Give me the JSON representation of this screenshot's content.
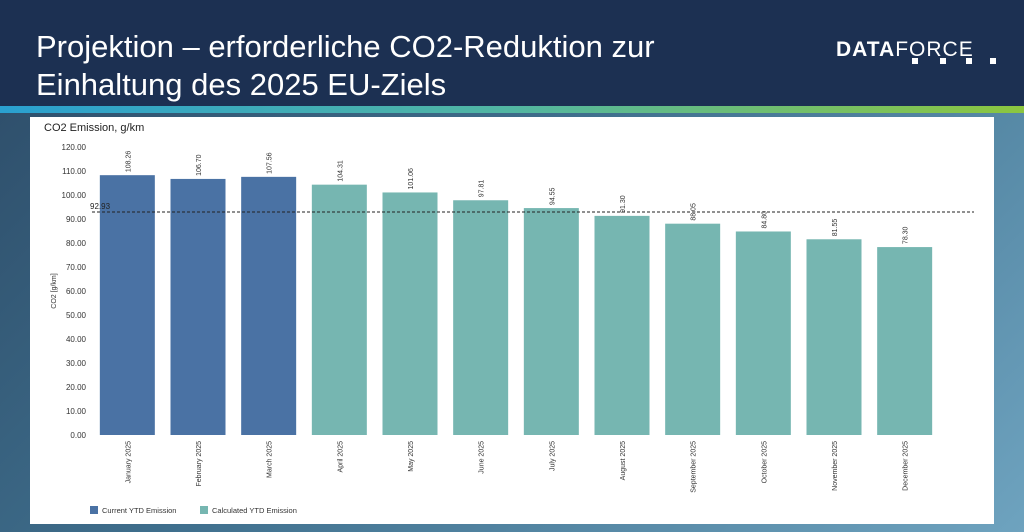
{
  "header": {
    "title": "Projektion – erforderliche CO2-Reduktion zur\nEinhaltung des 2025 EU-Ziels",
    "logo_bold": "DATA",
    "logo_light": "FORCE"
  },
  "colors": {
    "header_bg": "#1c3052",
    "current": "#4a72a4",
    "calculated": "#76b6b1",
    "target_line": "#222222"
  },
  "chart_data": {
    "type": "bar",
    "title": "CO2 Emission, g/km",
    "ylabel": "CO2 [g/km]",
    "xlabel": "",
    "ylim": [
      0,
      120
    ],
    "yticks": [
      "0.00",
      "10.00",
      "20.00",
      "30.00",
      "40.00",
      "50.00",
      "60.00",
      "70.00",
      "80.00",
      "90.00",
      "100.00",
      "110.00",
      "120.00"
    ],
    "categories": [
      "January 2025",
      "February 2025",
      "March 2025",
      "April 2025",
      "May 2025",
      "June 2025",
      "July 2025",
      "August 2025",
      "September 2025",
      "October 2025",
      "November 2025",
      "December 2025"
    ],
    "values": [
      108.26,
      106.7,
      107.56,
      104.31,
      101.06,
      97.81,
      94.55,
      91.3,
      88.05,
      84.8,
      81.55,
      78.3
    ],
    "value_labels": [
      "108.26",
      "106.70",
      "107.56",
      "104.31",
      "101.06",
      "97.81",
      "94.55",
      "91.30",
      "88.05",
      "84.80",
      "81.55",
      "78.30"
    ],
    "series_index": [
      0,
      0,
      0,
      1,
      1,
      1,
      1,
      1,
      1,
      1,
      1,
      1
    ],
    "series": [
      {
        "name": "Current YTD Emission",
        "color": "#4a72a4"
      },
      {
        "name": "Calculated YTD Emission",
        "color": "#76b6b1"
      }
    ],
    "target": {
      "value": 92.93,
      "label": "92.93",
      "style": "dashed"
    },
    "legend_position": "bottom-left",
    "grid": false
  }
}
